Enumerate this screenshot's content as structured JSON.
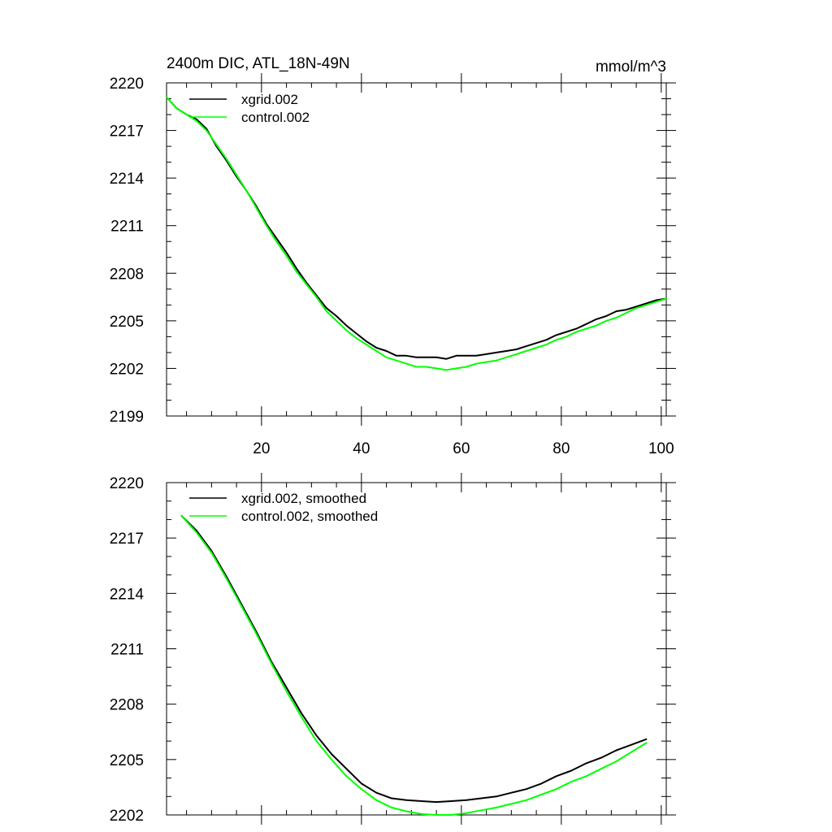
{
  "chart_data": [
    {
      "type": "line",
      "title": "2400m DIC, ATL_18N-49N",
      "units": "mmol/m^3",
      "xlabel": "",
      "ylabel": "",
      "xlim": [
        1,
        101
      ],
      "ylim": [
        2199,
        2220
      ],
      "xticks": [
        20,
        40,
        60,
        80,
        100
      ],
      "xtick_labels": [
        "20",
        "40",
        "60",
        "80",
        "100"
      ],
      "yticks": [
        2199,
        2202,
        2205,
        2208,
        2211,
        2214,
        2217,
        2220
      ],
      "ytick_labels": [
        "2199",
        "2202",
        "2205",
        "2208",
        "2211",
        "2214",
        "2217",
        "2220"
      ],
      "legend_position": "top-left",
      "series": [
        {
          "name": "xgrid.002",
          "color": "#000000",
          "x": [
            1,
            3,
            5,
            7,
            9,
            11,
            13,
            15,
            17,
            19,
            21,
            23,
            25,
            27,
            29,
            31,
            33,
            35,
            37,
            39,
            41,
            43,
            45,
            47,
            49,
            51,
            53,
            55,
            57,
            59,
            61,
            63,
            65,
            67,
            69,
            71,
            73,
            75,
            77,
            79,
            81,
            83,
            85,
            87,
            89,
            91,
            93,
            95,
            97,
            99,
            101
          ],
          "values": [
            2219.1,
            2218.4,
            2218.0,
            2217.7,
            2217.1,
            2216.0,
            2215.1,
            2214.1,
            2213.2,
            2212.2,
            2211.1,
            2210.2,
            2209.3,
            2208.3,
            2207.4,
            2206.6,
            2205.8,
            2205.3,
            2204.7,
            2204.2,
            2203.7,
            2203.3,
            2203.1,
            2202.8,
            2202.8,
            2202.7,
            2202.7,
            2202.7,
            2202.6,
            2202.8,
            2202.8,
            2202.8,
            2202.9,
            2203.0,
            2203.1,
            2203.2,
            2203.4,
            2203.6,
            2203.8,
            2204.1,
            2204.3,
            2204.5,
            2204.8,
            2205.1,
            2205.3,
            2205.6,
            2205.7,
            2205.9,
            2206.1,
            2206.3,
            2206.4
          ]
        },
        {
          "name": "control.002",
          "color": "#00ff00",
          "x": [
            1,
            3,
            5,
            7,
            9,
            11,
            13,
            15,
            17,
            19,
            21,
            23,
            25,
            27,
            29,
            31,
            33,
            35,
            37,
            39,
            41,
            43,
            45,
            47,
            49,
            51,
            53,
            55,
            57,
            59,
            61,
            63,
            65,
            67,
            69,
            71,
            73,
            75,
            77,
            79,
            81,
            83,
            85,
            87,
            89,
            91,
            93,
            95,
            97,
            99,
            101
          ],
          "values": [
            2219.1,
            2218.4,
            2218.0,
            2217.6,
            2217.0,
            2216.1,
            2215.2,
            2214.2,
            2213.2,
            2212.1,
            2211.0,
            2210.0,
            2209.1,
            2208.1,
            2207.3,
            2206.5,
            2205.6,
            2205.0,
            2204.4,
            2203.9,
            2203.5,
            2203.1,
            2202.7,
            2202.5,
            2202.3,
            2202.1,
            2202.1,
            2202.0,
            2201.9,
            2202.0,
            2202.1,
            2202.3,
            2202.4,
            2202.5,
            2202.7,
            2202.9,
            2203.1,
            2203.3,
            2203.5,
            2203.8,
            2204.0,
            2204.3,
            2204.5,
            2204.7,
            2205.0,
            2205.2,
            2205.5,
            2205.8,
            2206.0,
            2206.2,
            2206.4
          ]
        }
      ]
    },
    {
      "type": "line",
      "title": "",
      "xlabel": "",
      "ylabel": "",
      "xlim": [
        1,
        101
      ],
      "ylim": [
        2202,
        2220
      ],
      "xticks": [
        20,
        40,
        60,
        80,
        100
      ],
      "xtick_labels": [],
      "yticks": [
        2202,
        2205,
        2208,
        2211,
        2214,
        2217,
        2220
      ],
      "ytick_labels": [
        "2202",
        "2205",
        "2208",
        "2211",
        "2214",
        "2217",
        "2220"
      ],
      "legend_position": "top-left",
      "series": [
        {
          "name": "xgrid.002, smoothed",
          "color": "#000000",
          "x": [
            4,
            7,
            10,
            13,
            16,
            19,
            22,
            25,
            28,
            31,
            34,
            37,
            40,
            43,
            46,
            49,
            52,
            55,
            58,
            61,
            64,
            67,
            70,
            73,
            76,
            79,
            82,
            85,
            88,
            91,
            94,
            97
          ],
          "values": [
            2218.2,
            2217.4,
            2216.3,
            2214.9,
            2213.4,
            2211.9,
            2210.3,
            2208.9,
            2207.5,
            2206.3,
            2205.3,
            2204.5,
            2203.7,
            2203.2,
            2202.9,
            2202.8,
            2202.75,
            2202.7,
            2202.75,
            2202.8,
            2202.9,
            2203.0,
            2203.2,
            2203.4,
            2203.7,
            2204.1,
            2204.4,
            2204.8,
            2205.1,
            2205.5,
            2205.8,
            2206.1
          ]
        },
        {
          "name": "control.002, smoothed",
          "color": "#00ff00",
          "x": [
            4,
            7,
            10,
            13,
            16,
            19,
            22,
            25,
            28,
            31,
            34,
            37,
            40,
            43,
            46,
            49,
            52,
            55,
            58,
            61,
            64,
            67,
            70,
            73,
            76,
            79,
            82,
            85,
            88,
            91,
            94,
            97
          ],
          "values": [
            2218.2,
            2217.3,
            2216.2,
            2214.8,
            2213.3,
            2211.8,
            2210.2,
            2208.7,
            2207.3,
            2206.0,
            2205.0,
            2204.1,
            2203.4,
            2202.8,
            2202.4,
            2202.2,
            2202.05,
            2202.0,
            2202.0,
            2202.1,
            2202.25,
            2202.4,
            2202.6,
            2202.8,
            2203.1,
            2203.4,
            2203.8,
            2204.1,
            2204.5,
            2204.9,
            2205.4,
            2205.9
          ]
        }
      ]
    }
  ]
}
